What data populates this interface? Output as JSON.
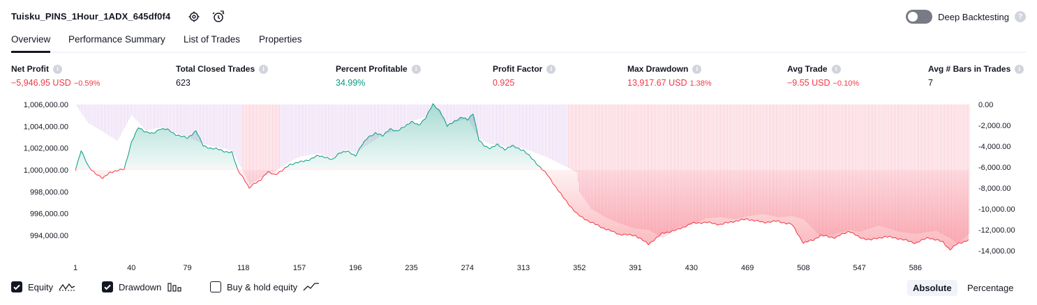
{
  "header": {
    "title": "Tuisku_PINS_1Hour_1ADX_645df0f4",
    "deep_backtesting_label": "Deep Backtesting",
    "help_glyph": "?"
  },
  "tabs": [
    {
      "label": "Overview",
      "active": true
    },
    {
      "label": "Performance Summary",
      "active": false
    },
    {
      "label": "List of Trades",
      "active": false
    },
    {
      "label": "Properties",
      "active": false
    }
  ],
  "metrics": [
    {
      "label": "Net Profit",
      "value": "−5,946.95 USD",
      "pct": "−0.59%",
      "color": "red"
    },
    {
      "label": "Total Closed Trades",
      "value": "623",
      "pct": "",
      "color": "dark"
    },
    {
      "label": "Percent Profitable",
      "value": "34.99%",
      "pct": "",
      "color": "green"
    },
    {
      "label": "Profit Factor",
      "value": "0.925",
      "pct": "",
      "color": "red"
    },
    {
      "label": "Max Drawdown",
      "value": "13,917.67 USD",
      "pct": "1.38%",
      "color": "red"
    },
    {
      "label": "Avg Trade",
      "value": "−9.55 USD",
      "pct": "−0.10%",
      "color": "red"
    },
    {
      "label": "Avg # Bars in Trades",
      "value": "7",
      "pct": "",
      "color": "dark"
    }
  ],
  "chart_data": {
    "type": "area",
    "series": [
      {
        "name": "Equity",
        "color": "#089981",
        "x": [
          1,
          5,
          10,
          15,
          20,
          25,
          30,
          35,
          40,
          45,
          50,
          55,
          60,
          65,
          70,
          79,
          85,
          90,
          95,
          100,
          105,
          110,
          114,
          118,
          122,
          126,
          130,
          135,
          140,
          145,
          150,
          157,
          165,
          170,
          175,
          180,
          185,
          190,
          196,
          200,
          205,
          210,
          215,
          220,
          225,
          230,
          235,
          240,
          245,
          250,
          255,
          260,
          265,
          270,
          274,
          278,
          282,
          286,
          290,
          295,
          300,
          305,
          313,
          320,
          330,
          340,
          350,
          352,
          360,
          370,
          380,
          391,
          400,
          410,
          420,
          430,
          440,
          450,
          460,
          469,
          480,
          490,
          500,
          508,
          515,
          520,
          530,
          540,
          547,
          555,
          565,
          575,
          586,
          595,
          605,
          610,
          615,
          623
        ],
        "y": [
          1000000,
          1001800,
          1000300,
          999700,
          999200,
          999800,
          999900,
          1000100,
          1002500,
          1003900,
          1003500,
          1003300,
          1003800,
          1003700,
          1003300,
          1002900,
          1003600,
          1002200,
          1002000,
          1001900,
          1001700,
          1001600,
          1000000,
          999300,
          998300,
          998800,
          999100,
          999800,
          999600,
          999900,
          1000500,
          1000700,
          1001000,
          1001300,
          1001200,
          1000900,
          1001600,
          1001700,
          1001300,
          1002200,
          1003000,
          1003400,
          1003100,
          1003800,
          1003500,
          1004000,
          1004400,
          1004100,
          1004800,
          1006000,
          1005400,
          1004000,
          1004500,
          1004800,
          1004600,
          1005200,
          1002700,
          1002200,
          1002000,
          1002300,
          1001900,
          1002200,
          1001800,
          1000900,
          999500,
          997600,
          996000,
          995800,
          995200,
          994600,
          994100,
          994000,
          993200,
          994200,
          994500,
          995100,
          995200,
          995000,
          995300,
          995500,
          995200,
          995300,
          995000,
          993300,
          993600,
          994000,
          993800,
          994400,
          993800,
          993600,
          993900,
          993700,
          993300,
          993800,
          993400,
          992700,
          993200,
          993600
        ]
      },
      {
        "name": "Drawdown",
        "color": "#f7a1b4",
        "x": [
          1,
          10,
          20,
          30,
          40,
          50,
          60,
          70,
          79,
          90,
          100,
          110,
          118,
          122,
          130,
          140,
          150,
          157,
          170,
          180,
          190,
          196,
          205,
          215,
          225,
          235,
          245,
          250,
          260,
          270,
          274,
          282,
          290,
          300,
          313,
          330,
          350,
          352,
          360,
          370,
          380,
          391,
          400,
          410,
          420,
          430,
          440,
          450,
          460,
          469,
          480,
          490,
          500,
          508,
          520,
          530,
          540,
          547,
          560,
          575,
          586,
          600,
          610,
          615,
          623
        ],
        "y": [
          0,
          -1800,
          -2600,
          -3500,
          -1000,
          -2500,
          -2200,
          -2700,
          -3100,
          -3800,
          -4100,
          -4400,
          -6500,
          -7700,
          -7000,
          -6400,
          -5500,
          -5000,
          -4700,
          -5100,
          -4300,
          -4700,
          -3800,
          -2900,
          -2500,
          -1600,
          -1200,
          0,
          -2000,
          -1500,
          -1400,
          -3300,
          -3800,
          -4000,
          -4200,
          -5100,
          -6500,
          -8400,
          -10000,
          -10800,
          -11400,
          -11900,
          -12000,
          -12800,
          -11800,
          -11500,
          -10900,
          -10800,
          -11000,
          -10700,
          -10500,
          -10800,
          -10700,
          -11000,
          -12700,
          -12400,
          -12000,
          -12200,
          -11600,
          -12200,
          -12400,
          -12100,
          -12800,
          -13300,
          -12400
        ]
      }
    ],
    "x_ticks": [
      1,
      40,
      79,
      118,
      157,
      196,
      235,
      274,
      313,
      352,
      391,
      430,
      469,
      508,
      547,
      586
    ],
    "y_left_ticks": [
      "1,006,000.00",
      "1,004,000.00",
      "1,002,000.00",
      "1,000,000.00",
      "998,000.00",
      "996,000.00",
      "994,000.00"
    ],
    "y_right_ticks": [
      "0.00",
      "-2,000.00",
      "-4,000.00",
      "-6,000.00",
      "-8,000.00",
      "-10,000.00",
      "-12,000.00",
      "-14,000.00"
    ],
    "y_left_range": [
      992600,
      1006000
    ],
    "y_right_range": [
      -14000,
      0
    ],
    "x_range": [
      1,
      623
    ],
    "baseline": 1000000
  },
  "legend": [
    {
      "label": "Equity",
      "checked": true,
      "icon": "equity-line-icon"
    },
    {
      "label": "Drawdown",
      "checked": true,
      "icon": "drawdown-bars-icon"
    },
    {
      "label": "Buy & hold equity",
      "checked": false,
      "icon": "buy-hold-line-icon"
    }
  ],
  "view_mode": {
    "absolute": "Absolute",
    "percentage": "Percentage",
    "selected": "absolute"
  }
}
